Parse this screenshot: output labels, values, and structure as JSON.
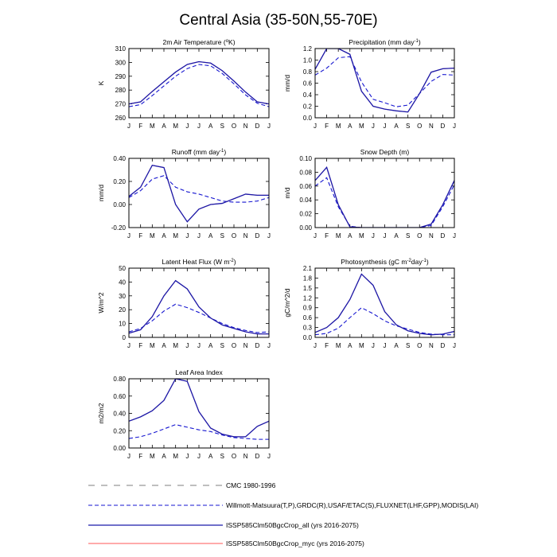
{
  "figure_title": "Central Asia (35-50N,55-70E)",
  "styles": {
    "CMC 1980-1996": {
      "color": "#555555",
      "dash": "8,8",
      "width": 0.8
    },
    "Willmott-Matsuura(T,P),GRDC(R),USAF/ETAC(S),FLUXNET(LHF,GPP),MODIS(LAI)": {
      "color": "#1515d0",
      "dash": "5,3",
      "width": 1.1
    },
    "ISSP585Clm50BgcCrop_all (yrs 2016-2075)": {
      "color": "#1a1aaa",
      "dash": "",
      "width": 1.3
    },
    "ISSP585Clm50BgcCrop_myc (yrs 2016-2075)": {
      "color": "#ff5555",
      "dash": "",
      "width": 1.0
    }
  },
  "legend": [
    {
      "label": "CMC 1980-1996"
    },
    {
      "label": "Willmott-Matsuura(T,P),GRDC(R),USAF/ETAC(S),FLUXNET(LHF,GPP),MODIS(LAI)"
    },
    {
      "label": "ISSP585Clm50BgcCrop_all (yrs 2016-2075)"
    },
    {
      "label": "ISSP585Clm50BgcCrop_myc (yrs 2016-2075)"
    }
  ],
  "chart_data": [
    {
      "type": "line",
      "title": "2m Air Temperature (°K)",
      "title_main": "2m Air Temperature (",
      "title_sup": "o",
      "title_rest": "K)",
      "ylabel": "K",
      "categories": [
        "J",
        "F",
        "M",
        "A",
        "M",
        "J",
        "J",
        "A",
        "S",
        "O",
        "N",
        "D",
        "J"
      ],
      "ylim": [
        260,
        310
      ],
      "yticks": [
        "260",
        "270",
        "280",
        "290",
        "300",
        "310"
      ],
      "series": [
        {
          "name": "Willmott-Matsuura(T,P),GRDC(R),USAF/ETAC(S),FLUXNET(LHF,GPP),MODIS(LAI)",
          "values": [
            268,
            269.5,
            276,
            283,
            290,
            295.5,
            298.5,
            297.5,
            292,
            284.5,
            276.5,
            270.5,
            268
          ]
        },
        {
          "name": "ISSP585Clm50BgcCrop_myc (yrs 2016-2075)",
          "values": [
            270,
            271.5,
            279,
            286,
            293,
            298.5,
            300.5,
            299.5,
            294,
            286.5,
            278.5,
            271.5,
            270
          ]
        },
        {
          "name": "ISSP585Clm50BgcCrop_all (yrs 2016-2075)",
          "values": [
            270,
            271.5,
            279,
            286,
            293,
            298.5,
            300.5,
            299.5,
            294,
            286.5,
            278.5,
            271.5,
            270
          ]
        }
      ]
    },
    {
      "type": "line",
      "title": "Precipitation (mm day-1)",
      "title_main": "Precipitation (mm day",
      "title_sup": "-1",
      "title_rest": ")",
      "ylabel": "mm/d",
      "categories": [
        "J",
        "F",
        "M",
        "A",
        "M",
        "J",
        "J",
        "A",
        "S",
        "O",
        "N",
        "D",
        "J"
      ],
      "ylim": [
        0.0,
        1.2
      ],
      "yticks": [
        "0.0",
        "0.2",
        "0.4",
        "0.6",
        "0.8",
        "1.0",
        "1.2"
      ],
      "series": [
        {
          "name": "Willmott-Matsuura(T,P),GRDC(R),USAF/ETAC(S),FLUXNET(LHF,GPP),MODIS(LAI)",
          "values": [
            0.74,
            0.86,
            1.04,
            1.06,
            0.62,
            0.32,
            0.26,
            0.19,
            0.22,
            0.42,
            0.63,
            0.75,
            0.74
          ]
        },
        {
          "name": "ISSP585Clm50BgcCrop_myc (yrs 2016-2075)",
          "values": [
            0.84,
            1.2,
            1.2,
            1.1,
            0.46,
            0.2,
            0.15,
            0.12,
            0.1,
            0.42,
            0.79,
            0.85,
            0.86
          ]
        },
        {
          "name": "ISSP585Clm50BgcCrop_all (yrs 2016-2075)",
          "values": [
            0.84,
            1.2,
            1.2,
            1.1,
            0.46,
            0.2,
            0.15,
            0.12,
            0.1,
            0.42,
            0.79,
            0.85,
            0.86
          ]
        }
      ]
    },
    {
      "type": "line",
      "title": "Runoff (mm day-1)",
      "title_main": "Runoff (mm day",
      "title_sup": "-1",
      "title_rest": ")",
      "ylabel": "mm/d",
      "categories": [
        "J",
        "F",
        "M",
        "A",
        "M",
        "J",
        "J",
        "A",
        "S",
        "O",
        "N",
        "D",
        "J"
      ],
      "ylim": [
        -0.2,
        0.4
      ],
      "yticks": [
        "-0.20",
        "0.00",
        "0.20",
        "0.40"
      ],
      "series": [
        {
          "name": "Willmott-Matsuura(T,P),GRDC(R),USAF/ETAC(S),FLUXNET(LHF,GPP),MODIS(LAI)",
          "values": [
            0.06,
            0.12,
            0.22,
            0.25,
            0.15,
            0.11,
            0.09,
            0.06,
            0.03,
            0.02,
            0.02,
            0.03,
            0.06
          ]
        },
        {
          "name": "ISSP585Clm50BgcCrop_myc (yrs 2016-2075)",
          "values": [
            0.07,
            0.15,
            0.34,
            0.32,
            0.0,
            -0.15,
            -0.04,
            0.0,
            0.01,
            0.05,
            0.09,
            0.08,
            0.08
          ]
        },
        {
          "name": "ISSP585Clm50BgcCrop_all (yrs 2016-2075)",
          "values": [
            0.07,
            0.15,
            0.34,
            0.32,
            0.0,
            -0.15,
            -0.04,
            0.0,
            0.01,
            0.05,
            0.09,
            0.08,
            0.08
          ]
        }
      ]
    },
    {
      "type": "line",
      "title": "Snow Depth (m)",
      "title_main": "Snow Depth (m)",
      "title_sup": "",
      "title_rest": "",
      "ylabel": "m/d",
      "categories": [
        "J",
        "F",
        "M",
        "A",
        "M",
        "J",
        "J",
        "A",
        "S",
        "O",
        "N",
        "D",
        "J"
      ],
      "ylim": [
        0.0,
        0.1
      ],
      "yticks": [
        "0.00",
        "0.02",
        "0.04",
        "0.06",
        "0.08",
        "0.10"
      ],
      "series": [
        {
          "name": "Willmott-Matsuura(T,P),GRDC(R),USAF/ETAC(S),FLUXNET(LHF,GPP),MODIS(LAI)",
          "values": [
            0.06,
            0.072,
            0.03,
            0.002,
            0.0,
            0.0,
            0.0,
            0.0,
            0.0,
            0.0,
            0.003,
            0.03,
            0.062
          ]
        },
        {
          "name": "ISSP585Clm50BgcCrop_myc (yrs 2016-2075)",
          "values": [
            0.068,
            0.087,
            0.033,
            0.001,
            0.0,
            0.0,
            0.0,
            0.0,
            0.0,
            0.0,
            0.005,
            0.033,
            0.068
          ]
        },
        {
          "name": "ISSP585Clm50BgcCrop_all (yrs 2016-2075)",
          "values": [
            0.068,
            0.087,
            0.033,
            0.001,
            0.0,
            0.0,
            0.0,
            0.0,
            0.0,
            0.0,
            0.005,
            0.033,
            0.068
          ]
        }
      ]
    },
    {
      "type": "line",
      "title": "Latent Heat Flux (W m-2)",
      "title_main": "Latent Heat Flux (W m",
      "title_sup": "-2",
      "title_rest": ")",
      "ylabel": "W/m^2",
      "categories": [
        "J",
        "F",
        "M",
        "A",
        "M",
        "J",
        "J",
        "A",
        "S",
        "O",
        "N",
        "D",
        "J"
      ],
      "ylim": [
        0,
        50
      ],
      "yticks": [
        "0",
        "10",
        "20",
        "30",
        "40",
        "50"
      ],
      "series": [
        {
          "name": "Willmott-Matsuura(T,P),GRDC(R),USAF/ETAC(S),FLUXNET(LHF,GPP),MODIS(LAI)",
          "values": [
            4,
            6.5,
            12,
            19,
            24,
            21.5,
            18,
            14,
            10,
            7,
            5,
            3.5,
            4
          ]
        },
        {
          "name": "ISSP585Clm50BgcCrop_myc (yrs 2016-2075)",
          "values": [
            3,
            5.5,
            15,
            30,
            41,
            35,
            22,
            14,
            9,
            6.5,
            4,
            2.5,
            2.5
          ]
        },
        {
          "name": "ISSP585Clm50BgcCrop_all (yrs 2016-2075)",
          "values": [
            3,
            5.5,
            15,
            30,
            41,
            35,
            22,
            14,
            9,
            6.5,
            4,
            2.5,
            2.5
          ]
        }
      ]
    },
    {
      "type": "line",
      "title": "Photosynthesis (gC m-2day-1)",
      "title_main": "Photosynthesis (gC m",
      "title_sup": "-2",
      "title_rest": "day",
      "title_sup2": "-1",
      "title_rest2": ")",
      "ylabel": "gC/m^2/d",
      "categories": [
        "J",
        "F",
        "M",
        "A",
        "M",
        "J",
        "J",
        "A",
        "S",
        "O",
        "N",
        "D",
        "J"
      ],
      "ylim": [
        0.0,
        2.1
      ],
      "yticks": [
        "0.0",
        "0.3",
        "0.6",
        "0.9",
        "1.2",
        "1.5",
        "1.8",
        "2.1"
      ],
      "series": [
        {
          "name": "Willmott-Matsuura(T,P),GRDC(R),USAF/ETAC(S),FLUXNET(LHF,GPP),MODIS(LAI)",
          "values": [
            0.08,
            0.12,
            0.28,
            0.6,
            0.9,
            0.72,
            0.5,
            0.35,
            0.25,
            0.15,
            0.1,
            0.08,
            0.08
          ]
        },
        {
          "name": "ISSP585Clm50BgcCrop_myc (yrs 2016-2075)",
          "values": [
            0.15,
            0.3,
            0.6,
            1.15,
            1.92,
            1.58,
            0.78,
            0.38,
            0.2,
            0.12,
            0.08,
            0.1,
            0.18
          ]
        },
        {
          "name": "ISSP585Clm50BgcCrop_all (yrs 2016-2075)",
          "values": [
            0.15,
            0.3,
            0.6,
            1.15,
            1.92,
            1.58,
            0.78,
            0.38,
            0.2,
            0.12,
            0.08,
            0.1,
            0.18
          ]
        }
      ]
    },
    {
      "type": "line",
      "title": "Leaf Area Index",
      "title_main": "Leaf Area Index",
      "title_sup": "",
      "title_rest": "",
      "ylabel": "m2/m2",
      "categories": [
        "J",
        "F",
        "M",
        "A",
        "M",
        "J",
        "J",
        "A",
        "S",
        "O",
        "N",
        "D",
        "J"
      ],
      "ylim": [
        0.0,
        0.8
      ],
      "yticks": [
        "0.00",
        "0.20",
        "0.40",
        "0.60",
        "0.80"
      ],
      "series": [
        {
          "name": "Willmott-Matsuura(T,P),GRDC(R),USAF/ETAC(S),FLUXNET(LHF,GPP),MODIS(LAI)",
          "values": [
            0.11,
            0.13,
            0.17,
            0.22,
            0.27,
            0.24,
            0.21,
            0.19,
            0.15,
            0.12,
            0.11,
            0.1,
            0.1
          ]
        },
        {
          "name": "ISSP585Clm50BgcCrop_myc (yrs 2016-2075)",
          "values": [
            0.31,
            0.36,
            0.43,
            0.55,
            0.8,
            0.77,
            0.42,
            0.23,
            0.16,
            0.13,
            0.13,
            0.25,
            0.31
          ]
        },
        {
          "name": "ISSP585Clm50BgcCrop_all (yrs 2016-2075)",
          "values": [
            0.31,
            0.36,
            0.43,
            0.55,
            0.8,
            0.77,
            0.42,
            0.23,
            0.16,
            0.13,
            0.13,
            0.25,
            0.31
          ]
        }
      ]
    }
  ]
}
